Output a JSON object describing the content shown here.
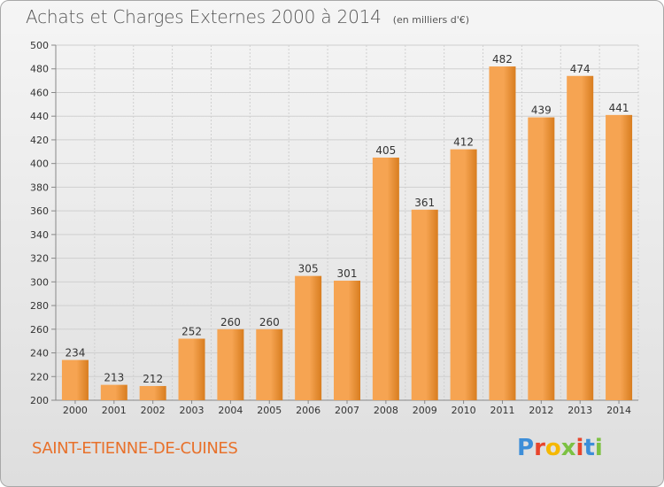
{
  "header": {
    "title": "Achats et Charges Externes 2000 à 2014",
    "subtitle": "(en milliers d'€)"
  },
  "footer": {
    "commune": "SAINT-ETIENNE-DE-CUINES",
    "logo_text": "Proxiti"
  },
  "colors": {
    "bar_light": "#f6a452",
    "bar_dark": "#d87d1f",
    "commune_text": "#e8712b",
    "grid": "#cfcfcf",
    "axis_text": "#333333"
  },
  "chart_data": {
    "type": "bar",
    "title": "Achats et Charges Externes 2000 à 2014",
    "subtitle": "(en milliers d'€)",
    "categories": [
      "2000",
      "2001",
      "2002",
      "2003",
      "2004",
      "2005",
      "2006",
      "2007",
      "2008",
      "2009",
      "2010",
      "2011",
      "2012",
      "2013",
      "2014"
    ],
    "values": [
      234,
      213,
      212,
      252,
      260,
      260,
      305,
      301,
      405,
      361,
      412,
      482,
      439,
      474,
      441
    ],
    "ylim": [
      200,
      500
    ],
    "yticks": [
      200,
      220,
      240,
      260,
      280,
      300,
      320,
      340,
      360,
      380,
      400,
      420,
      440,
      460,
      480,
      500
    ],
    "grid": true,
    "xlabel": "",
    "ylabel": ""
  }
}
